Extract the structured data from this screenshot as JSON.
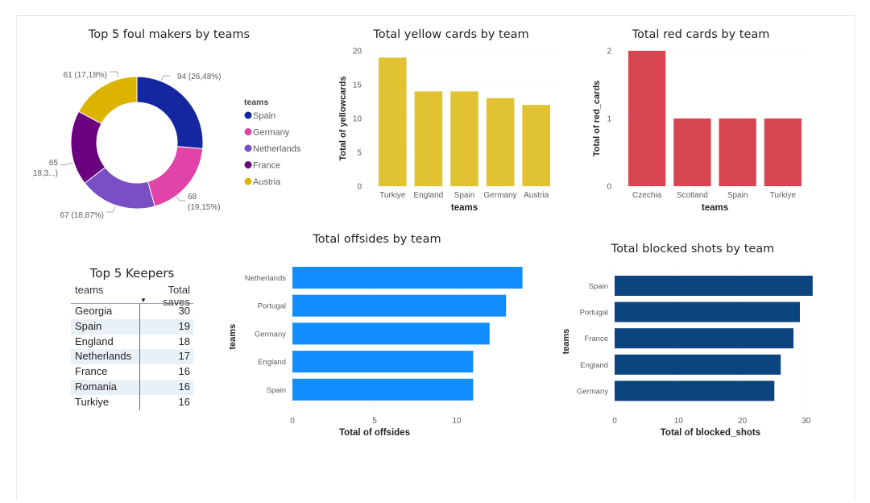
{
  "chart_data": [
    {
      "id": "fouls",
      "type": "pie",
      "variant": "donut",
      "title": "Top 5 foul makers by teams",
      "legend_title": "teams",
      "legend_position": "right",
      "categories": [
        "Spain",
        "Germany",
        "Netherlands",
        "France",
        "Austria"
      ],
      "values": [
        94,
        68,
        67,
        65,
        61
      ],
      "data_labels": [
        "94 (26,48%)",
        "68 (19,15%)",
        "67 (18,87%)",
        "65 (18,3...)",
        "61 (17,18%)"
      ],
      "colors": [
        "#1426a0",
        "#e044a8",
        "#7a4ec4",
        "#6b0080",
        "#dcb400"
      ]
    },
    {
      "id": "yellow",
      "type": "bar",
      "orientation": "vertical",
      "title": "Total yellow cards by team",
      "xlabel": "teams",
      "ylabel": "Total of yellowcards",
      "categories": [
        "Turkiye",
        "England",
        "Spain",
        "Germany",
        "Austria"
      ],
      "values": [
        19,
        14,
        14,
        13,
        12
      ],
      "ylim": [
        0,
        20
      ],
      "yticks": [
        0,
        5,
        10,
        15,
        20
      ],
      "grid": true,
      "color": "#e0c232"
    },
    {
      "id": "red",
      "type": "bar",
      "orientation": "vertical",
      "title": "Total red cards by team",
      "xlabel": "teams",
      "ylabel": "Total of red_cards",
      "categories": [
        "Czechia",
        "Scotland",
        "Spain",
        "Turkiye"
      ],
      "values": [
        2,
        1,
        1,
        1
      ],
      "ylim": [
        0,
        2
      ],
      "yticks": [
        0,
        1,
        2
      ],
      "grid": true,
      "color": "#d64550"
    },
    {
      "id": "keepers",
      "type": "table",
      "title": "Top 5 Keepers",
      "columns": [
        "teams",
        "Total saves"
      ],
      "sort_column": "Total saves",
      "sort_direction": "descending",
      "rows": [
        [
          "Georgia",
          "30"
        ],
        [
          "Spain",
          "19"
        ],
        [
          "England",
          "18"
        ],
        [
          "Netherlands",
          "17"
        ],
        [
          "France",
          "16"
        ],
        [
          "Romania",
          "16"
        ],
        [
          "Turkiye",
          "16"
        ]
      ]
    },
    {
      "id": "offsides",
      "type": "bar",
      "orientation": "horizontal",
      "title": "Total offsides by team",
      "xlabel": "Total of offsides",
      "ylabel": "teams",
      "categories": [
        "Netherlands",
        "Portugal",
        "Germany",
        "England",
        "Spain"
      ],
      "values": [
        14,
        13,
        12,
        11,
        11
      ],
      "xlim": [
        0,
        15
      ],
      "xticks": [
        0,
        5,
        10
      ],
      "grid": true,
      "color": "#118dff"
    },
    {
      "id": "blocked",
      "type": "bar",
      "orientation": "horizontal",
      "title": "Total blocked shots by team",
      "xlabel": "Total of blocked_shots",
      "ylabel": "teams",
      "categories": [
        "Spain",
        "Portugal",
        "France",
        "England",
        "Germany"
      ],
      "values": [
        31,
        29,
        28,
        26,
        25
      ],
      "xlim": [
        0,
        31
      ],
      "xticks": [
        0,
        10,
        20,
        30
      ],
      "grid": true,
      "color": "#0b447f"
    }
  ]
}
